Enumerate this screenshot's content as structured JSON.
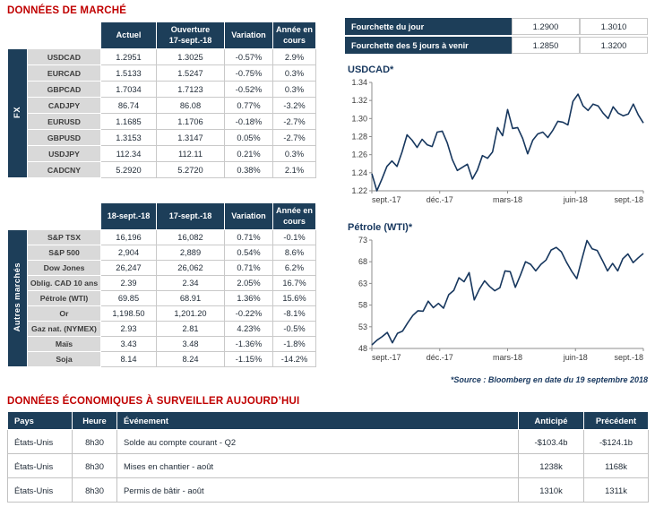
{
  "titles": {
    "market_data": "DONNÉES DE MARCHÉ",
    "economic": "DONNÉES ÉCONOMIQUES À SURVEILLER AUJOURD’HUI",
    "source_note": "*Source : Bloomberg en date du  19 septembre 2018"
  },
  "colors": {
    "header_navy": "#1d3e59",
    "title_red": "#c00000",
    "positive_green": "#00a14b",
    "negative_red": "#ff0000",
    "chart_line_navy": "#17375e",
    "row_label_gray": "#d9d9d9"
  },
  "ranges": [
    {
      "label": "Fourchette du jour",
      "low": "1.2900",
      "high": "1.3010"
    },
    {
      "label": "Fourchette des 5 jours à venir",
      "low": "1.2850",
      "high": "1.3200"
    }
  ],
  "fx_table": {
    "group_label": "FX",
    "headers": [
      "Actuel",
      "Ouverture\n17-sept.-18",
      "Variation",
      "Année en\ncours"
    ],
    "rows": [
      {
        "label": "USDCAD",
        "actuel": "1.2951",
        "ouverture": "1.3025",
        "variation": "-0.57%",
        "ytd": "2.9%"
      },
      {
        "label": "EURCAD",
        "actuel": "1.5133",
        "ouverture": "1.5247",
        "variation": "-0.75%",
        "ytd": "0.3%"
      },
      {
        "label": "GBPCAD",
        "actuel": "1.7034",
        "ouverture": "1.7123",
        "variation": "-0.52%",
        "ytd": "0.3%"
      },
      {
        "label": "CADJPY",
        "actuel": "86.74",
        "ouverture": "86.08",
        "variation": "0.77%",
        "ytd": "-3.2%"
      },
      {
        "label": "EURUSD",
        "actuel": "1.1685",
        "ouverture": "1.1706",
        "variation": "-0.18%",
        "ytd": "-2.7%"
      },
      {
        "label": "GBPUSD",
        "actuel": "1.3153",
        "ouverture": "1.3147",
        "variation": "0.05%",
        "ytd": "-2.7%"
      },
      {
        "label": "USDJPY",
        "actuel": "112.34",
        "ouverture": "112.11",
        "variation": "0.21%",
        "ytd": "0.3%"
      },
      {
        "label": "CADCNY",
        "actuel": "5.2920",
        "ouverture": "5.2720",
        "variation": "0.38%",
        "ytd": "2.1%"
      }
    ]
  },
  "markets_table": {
    "group_label": "Autres marchés",
    "headers": [
      "18-sept.-18",
      "17-sept.-18",
      "Variation",
      "Année en\ncours"
    ],
    "rows": [
      {
        "label": "S&P TSX",
        "v1": "16,196",
        "v2": "16,082",
        "variation": "0.71%",
        "ytd": "-0.1%"
      },
      {
        "label": "S&P 500",
        "v1": "2,904",
        "v2": "2,889",
        "variation": "0.54%",
        "ytd": "8.6%"
      },
      {
        "label": "Dow Jones",
        "v1": "26,247",
        "v2": "26,062",
        "variation": "0.71%",
        "ytd": "6.2%"
      },
      {
        "label": "Oblig. CAD 10 ans",
        "v1": "2.39",
        "v2": "2.34",
        "variation": "2.05%",
        "ytd": "16.7%"
      },
      {
        "label": "Pétrole (WTI)",
        "v1": "69.85",
        "v2": "68.91",
        "variation": "1.36%",
        "ytd": "15.6%"
      },
      {
        "label": "Or",
        "v1": "1,198.50",
        "v2": "1,201.20",
        "variation": "-0.22%",
        "ytd": "-8.1%"
      },
      {
        "label": "Gaz nat. (NYMEX)",
        "v1": "2.93",
        "v2": "2.81",
        "variation": "4.23%",
        "ytd": "-0.5%"
      },
      {
        "label": "Maïs",
        "v1": "3.43",
        "v2": "3.48",
        "variation": "-1.36%",
        "ytd": "-1.8%"
      },
      {
        "label": "Soja",
        "v1": "8.14",
        "v2": "8.24",
        "variation": "-1.15%",
        "ytd": "-14.2%"
      }
    ]
  },
  "econ_table": {
    "headers": [
      "Pays",
      "Heure",
      "Événement",
      "Anticipé",
      "Précédent"
    ],
    "rows": [
      {
        "pays": "États-Unis",
        "heure": "8h30",
        "evenement": "Solde au compte courant - Q2",
        "anticipe": "-$103.4b",
        "precedent": "-$124.1b"
      },
      {
        "pays": "États-Unis",
        "heure": "8h30",
        "evenement": "Mises en chantier - août",
        "anticipe": "1238k",
        "precedent": "1168k"
      },
      {
        "pays": "États-Unis",
        "heure": "8h30",
        "evenement": "Permis de bâtir - août",
        "anticipe": "1310k",
        "precedent": "1311k"
      }
    ]
  },
  "chart_data": [
    {
      "type": "line",
      "title": "USDCAD*",
      "xlabel": "",
      "ylabel": "",
      "ylim": [
        1.22,
        1.34
      ],
      "yticks": [
        "1.22",
        "1.24",
        "1.26",
        "1.28",
        "1.30",
        "1.32",
        "1.34"
      ],
      "xticklabels": [
        "sept.-17",
        "déc.-17",
        "mars-18",
        "juin-18",
        "sept.-18"
      ],
      "grid": false,
      "legend": false,
      "line_color": "#17375e",
      "series": [
        {
          "name": "USDCAD",
          "values": [
            1.239,
            1.22,
            1.233,
            1.247,
            1.253,
            1.247,
            1.263,
            1.282,
            1.276,
            1.268,
            1.277,
            1.271,
            1.269,
            1.285,
            1.286,
            1.273,
            1.2545,
            1.2425,
            1.246,
            1.2495,
            1.233,
            1.243,
            1.259,
            1.256,
            1.263,
            1.29,
            1.281,
            1.31,
            1.289,
            1.29,
            1.278,
            1.261,
            1.276,
            1.283,
            1.285,
            1.279,
            1.287,
            1.297,
            1.296,
            1.293,
            1.319,
            1.327,
            1.314,
            1.309,
            1.316,
            1.314,
            1.306,
            1.3,
            1.313,
            1.306,
            1.303,
            1.305,
            1.316,
            1.304,
            1.2951
          ]
        }
      ]
    },
    {
      "type": "line",
      "title": "Pétrole (WTI)*",
      "xlabel": "",
      "ylabel": "",
      "ylim": [
        48,
        73
      ],
      "yticks": [
        "48",
        "53",
        "58",
        "63",
        "68",
        "73"
      ],
      "xticklabels": [
        "sept.-17",
        "déc.-17",
        "mars-18",
        "juin-18",
        "sept.-18"
      ],
      "grid": false,
      "legend": false,
      "line_color": "#17375e",
      "series": [
        {
          "name": "WTI",
          "values": [
            48.8,
            49.9,
            50.7,
            51.7,
            49.3,
            51.5,
            52.0,
            53.9,
            55.6,
            56.7,
            56.6,
            58.9,
            57.4,
            58.4,
            57.3,
            60.4,
            61.4,
            64.3,
            63.4,
            65.5,
            59.2,
            61.7,
            63.6,
            62.3,
            61.3,
            62.0,
            65.9,
            65.7,
            62.1,
            64.9,
            68.0,
            67.4,
            65.9,
            67.4,
            68.4,
            70.7,
            71.3,
            70.3,
            67.9,
            65.8,
            64.1,
            68.6,
            72.9,
            71.0,
            70.6,
            68.3,
            65.9,
            67.6,
            65.9,
            68.7,
            69.8,
            67.8,
            68.9,
            69.9
          ]
        }
      ]
    }
  ]
}
